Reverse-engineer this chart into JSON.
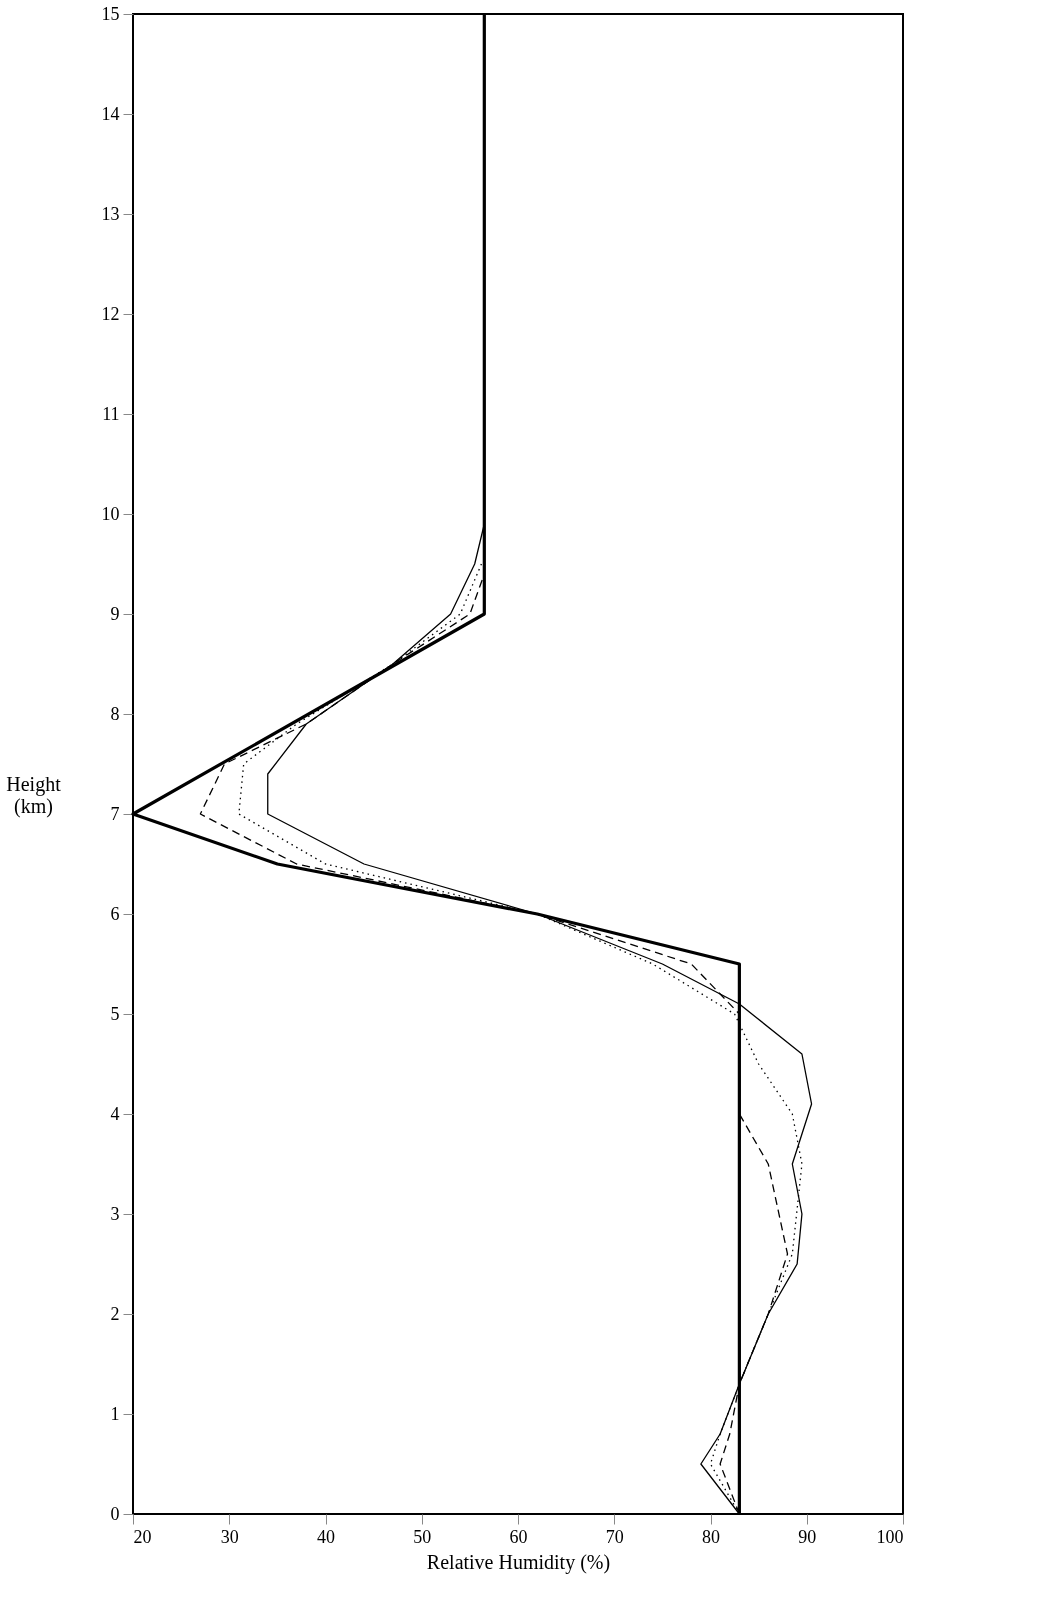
{
  "chart_data": {
    "type": "line",
    "xlabel": "Relative  Humidity (%)",
    "ylabel": "Height (km)",
    "xlim": [
      20,
      100
    ],
    "xticks": [
      20,
      30,
      40,
      50,
      60,
      70,
      80,
      90,
      100
    ],
    "ylim": [
      0,
      15
    ],
    "yticks": [
      0,
      1,
      2,
      3,
      4,
      5,
      6,
      7,
      8,
      9,
      10,
      11,
      12,
      13,
      14,
      15
    ],
    "grid": false,
    "marker": "none",
    "series": [
      {
        "color": "#000000",
        "line_style": "solid",
        "x": [
          83,
          83,
          62,
          35,
          20,
          56.5,
          56.5
        ],
        "values": [
          0,
          5.5,
          6.0,
          6.5,
          7.0,
          9.0,
          15
        ]
      },
      {
        "color": "#000000",
        "line_style": "solid",
        "x": [
          83,
          79,
          81,
          83,
          86,
          89,
          89.5,
          88.5,
          90.5,
          89.5,
          83,
          75,
          62,
          44,
          34,
          34,
          38,
          47,
          53,
          55.5,
          56.5
        ],
        "values": [
          0,
          0.5,
          0.8,
          1.3,
          2.0,
          2.5,
          3.0,
          3.5,
          4.1,
          4.6,
          5.1,
          5.5,
          6.0,
          6.5,
          7.0,
          7.4,
          7.9,
          8.5,
          9.0,
          9.5,
          9.9
        ]
      },
      {
        "color": "#000000",
        "line_style": "dotted",
        "x": [
          83,
          80,
          81,
          83,
          86,
          88.5,
          89.5,
          88.5,
          85,
          82.5,
          74,
          62,
          40,
          31,
          31.5,
          37,
          47,
          54,
          56.2
        ],
        "values": [
          0,
          0.5,
          0.8,
          1.3,
          2.0,
          2.6,
          3.5,
          4.0,
          4.5,
          5.0,
          5.5,
          6.0,
          6.5,
          7.0,
          7.5,
          7.9,
          8.5,
          9.0,
          9.5
        ]
      },
      {
        "color": "#000000",
        "line_style": "dashed",
        "x": [
          83,
          81,
          82,
          83,
          86,
          88,
          86,
          83,
          83,
          78,
          62,
          37,
          27,
          29.5,
          38,
          47,
          55,
          56.5
        ],
        "values": [
          0,
          0.5,
          0.8,
          1.3,
          2.0,
          2.6,
          3.5,
          4.0,
          5.0,
          5.5,
          6.0,
          6.5,
          7.0,
          7.5,
          7.9,
          8.5,
          9.0,
          9.4
        ]
      }
    ]
  }
}
